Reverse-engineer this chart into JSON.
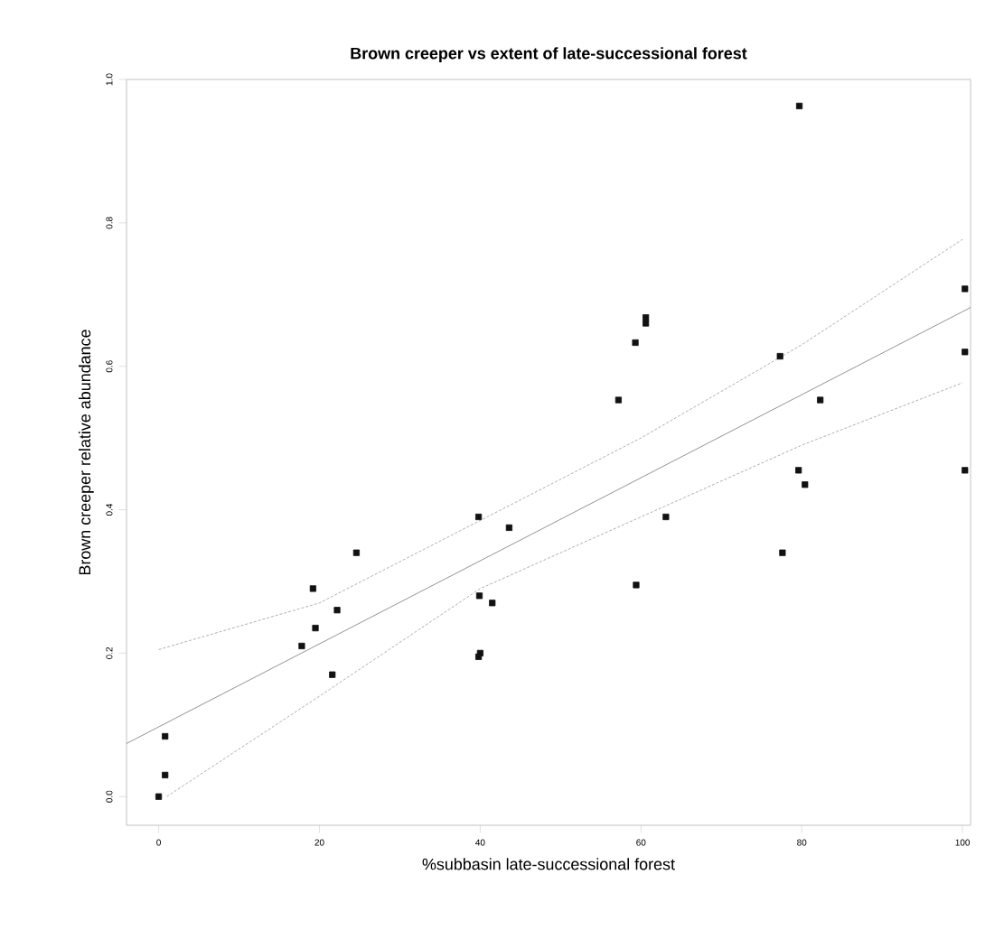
{
  "chart_data": {
    "type": "scatter",
    "title": "Brown creeper vs extent of late-successional forest",
    "xlabel": "%subbasin late-successional forest",
    "ylabel": "Brown creeper relative abundance",
    "xlim": [
      -4,
      101
    ],
    "ylim": [
      -0.04,
      1.0
    ],
    "xticks": [
      0,
      20,
      40,
      60,
      80,
      100
    ],
    "yticks": [
      {
        "value": 0,
        "label": "0.0"
      },
      0.2,
      0.4,
      0.6,
      0.8,
      {
        "value": 1,
        "label": "1.0"
      }
    ],
    "marker": "square",
    "series": [
      {
        "color": "#111111",
        "x": [
          0,
          0.8,
          0.8,
          24.6,
          19.2,
          22.2,
          19.5,
          17.8,
          21.6,
          39.8,
          43.6,
          39.9,
          41.5,
          40,
          39.8,
          63.1,
          59.4,
          77.6,
          79.6,
          80.4,
          100.3,
          79.7,
          100.3,
          100.3,
          82.3,
          77.3,
          60.6,
          60.6,
          59.3,
          57.2
        ],
        "values": [
          0.0,
          0.03,
          0.084,
          0.34,
          0.29,
          0.26,
          0.235,
          0.21,
          0.17,
          0.39,
          0.375,
          0.28,
          0.27,
          0.2,
          0.195,
          0.39,
          0.295,
          0.34,
          0.455,
          0.435,
          0.455,
          0.963,
          0.708,
          0.62,
          0.553,
          0.614,
          0.668,
          0.66,
          0.633,
          0.553
        ]
      },
      {
        "type": "line",
        "color": "#777777",
        "line_style": "solid",
        "marker": "none",
        "x": [
          -4,
          101
        ],
        "values": [
          0.074,
          0.682
        ]
      },
      {
        "type": "line",
        "color": "#999999",
        "line_style": "dashed",
        "marker": "none",
        "x": [
          0,
          20,
          40,
          60,
          80,
          100
        ],
        "values": [
          0.205,
          0.27,
          0.385,
          0.5,
          0.63,
          0.777
        ]
      },
      {
        "type": "line",
        "color": "#999999",
        "line_style": "dashed",
        "marker": "none",
        "x": [
          1,
          20,
          40,
          60,
          80,
          100
        ],
        "values": [
          0.0,
          0.14,
          0.29,
          0.39,
          0.49,
          0.577
        ]
      }
    ]
  }
}
